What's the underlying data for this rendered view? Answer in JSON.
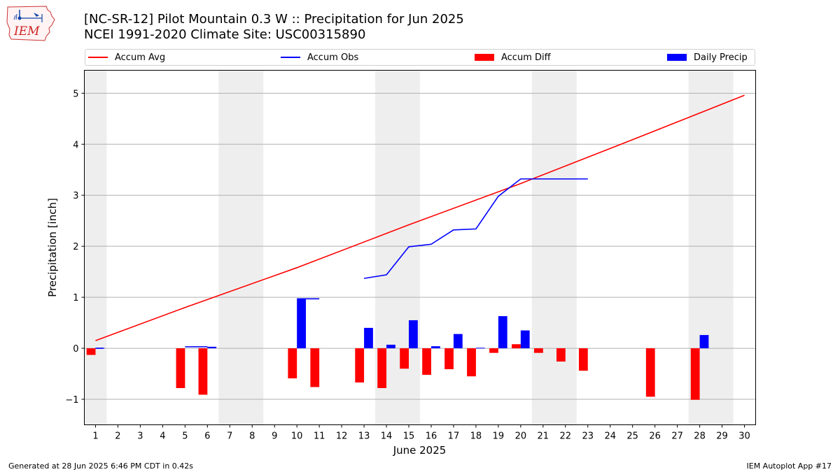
{
  "header": {
    "title_line1": "[NC-SR-12] Pilot Mountain 0.3 W :: Precipitation for Jun 2025",
    "title_line2": "NCEI 1991-2020 Climate Site: USC00315890"
  },
  "logo": {
    "text": "IEM",
    "icon": "iem-iowa-map-logo"
  },
  "legend": [
    {
      "label": "Accum Avg",
      "kind": "line",
      "color": "#ff0000"
    },
    {
      "label": "Accum Obs",
      "kind": "line",
      "color": "#0000ff"
    },
    {
      "label": "Accum Diff",
      "kind": "box",
      "color": "#ff0000"
    },
    {
      "label": "Daily Precip",
      "kind": "box",
      "color": "#0000ff"
    }
  ],
  "footer": {
    "generated": "Generated at 28 Jun 2025 6:46 PM CDT in 0.42s",
    "app": "IEM Autoplot App #17"
  },
  "chart_data": {
    "type": "bar",
    "xlabel": "June 2025",
    "ylabel": "Precipitation [inch]",
    "xlim": [
      0.5,
      30.5
    ],
    "ylim": [
      -1.5,
      5.45
    ],
    "x_ticks": [
      1,
      2,
      3,
      4,
      5,
      6,
      7,
      8,
      9,
      10,
      11,
      12,
      13,
      14,
      15,
      16,
      17,
      18,
      19,
      20,
      21,
      22,
      23,
      24,
      25,
      26,
      27,
      28,
      29,
      30
    ],
    "y_ticks": [
      -1,
      0,
      1,
      2,
      3,
      4,
      5
    ],
    "grid": "horizontal",
    "weekend_shading": [
      [
        0.5,
        1.5
      ],
      [
        6.5,
        8.5
      ],
      [
        13.5,
        15.5
      ],
      [
        20.5,
        22.5
      ],
      [
        27.5,
        29.5
      ]
    ],
    "colors": {
      "avg": "#ff0000",
      "obs": "#0000ff",
      "diff": "#ff0000",
      "daily": "#0000ff",
      "shade": "#eeeeee",
      "grid": "#b0b0b0"
    },
    "accum_avg": {
      "x": [
        1,
        5,
        10,
        15,
        20,
        25,
        30
      ],
      "y": [
        0.15,
        0.8,
        1.58,
        2.42,
        3.23,
        4.09,
        4.96
      ]
    },
    "accum_obs": {
      "segments": [
        {
          "x": [
            1,
            1.35
          ],
          "y": [
            0.0,
            0.0
          ]
        },
        {
          "x": [
            5,
            6.0
          ],
          "y": [
            0.03,
            0.03
          ]
        },
        {
          "x": [
            10,
            11
          ],
          "y": [
            0.97,
            0.97
          ]
        },
        {
          "x": [
            13,
            14,
            15,
            16,
            17,
            18,
            19,
            20,
            21,
            22,
            23
          ],
          "y": [
            1.37,
            1.44,
            1.99,
            2.04,
            2.32,
            2.34,
            2.98,
            3.32,
            3.32,
            3.32,
            3.32
          ]
        }
      ]
    },
    "accum_diff": {
      "x": [
        1,
        5,
        6,
        10,
        11,
        13,
        14,
        15,
        16,
        17,
        18,
        19,
        20,
        21,
        22,
        23,
        26,
        28
      ],
      "values": [
        -0.13,
        -0.78,
        -0.91,
        -0.59,
        -0.76,
        -0.67,
        -0.78,
        -0.4,
        -0.52,
        -0.41,
        -0.55,
        -0.09,
        0.08,
        -0.09,
        -0.26,
        -0.44,
        -0.95,
        -1.01
      ]
    },
    "daily_precip": {
      "x": [
        1,
        6,
        10,
        13,
        14,
        15,
        16,
        17,
        18,
        19,
        20,
        28
      ],
      "values": [
        0.01,
        0.03,
        0.96,
        0.4,
        0.07,
        0.55,
        0.04,
        0.28,
        0.01,
        0.63,
        0.35,
        0.26
      ]
    }
  }
}
